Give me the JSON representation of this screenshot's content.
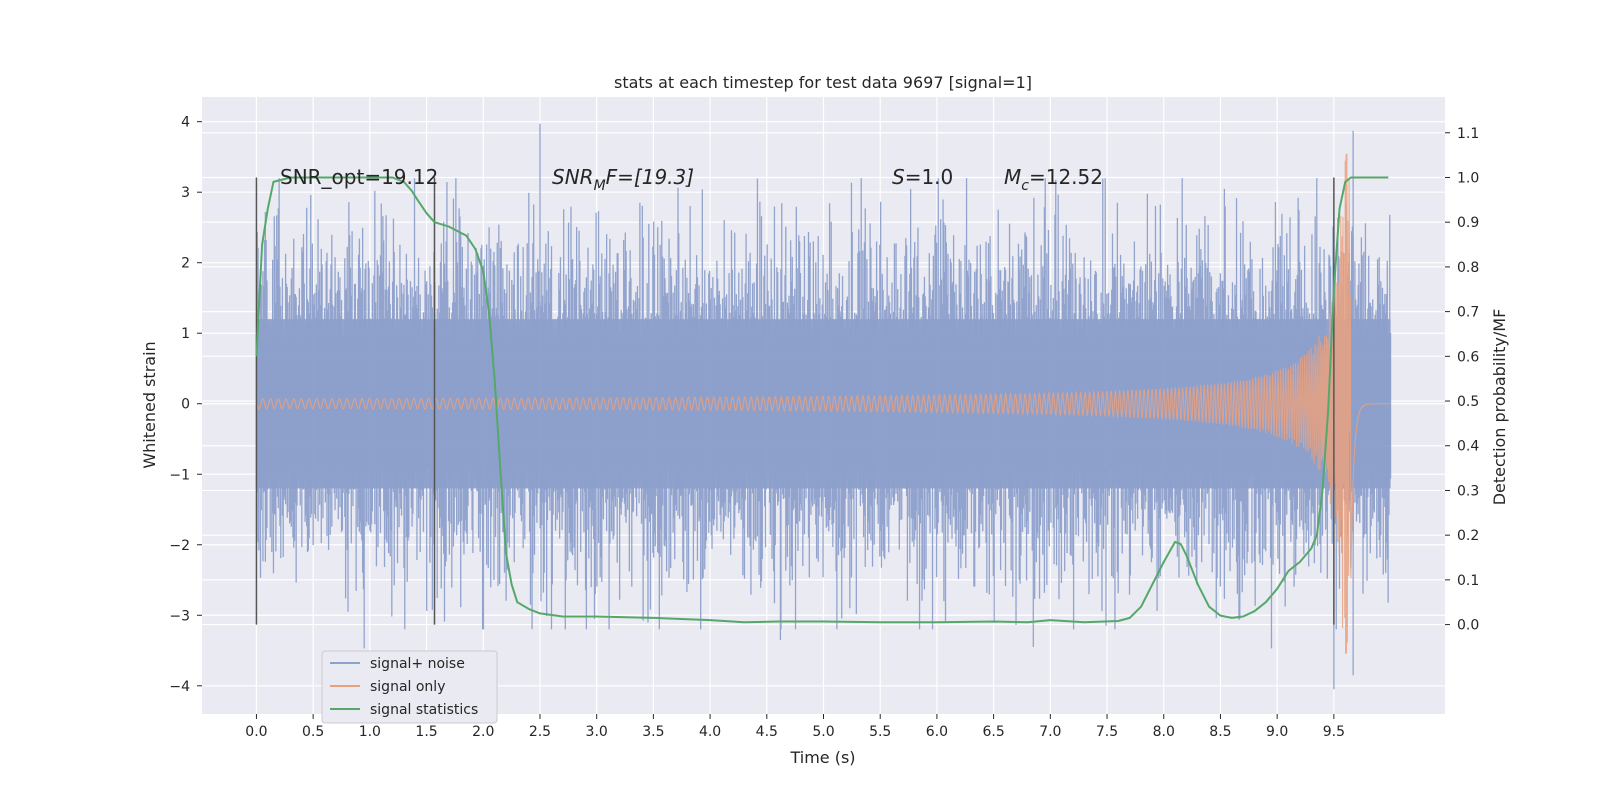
{
  "chart_data": {
    "type": "line",
    "title": "stats at each timestep for test data 9697 [signal=1]",
    "xlabel": "Time (s)",
    "ylabel_left": "Whitened strain",
    "ylabel_right": "Detection probability/MF",
    "xlim": [
      -0.48,
      10.48
    ],
    "ylim_left": [
      -4.4,
      4.35
    ],
    "ylim_right": [
      -0.2,
      1.18
    ],
    "x_ticks": [
      0.0,
      0.5,
      1.0,
      1.5,
      2.0,
      2.5,
      3.0,
      3.5,
      4.0,
      4.5,
      5.0,
      5.5,
      6.0,
      6.5,
      7.0,
      7.5,
      8.0,
      8.5,
      9.0,
      9.5
    ],
    "x_tick_labels": [
      "0.0",
      "0.5",
      "1.0",
      "1.5",
      "2.0",
      "2.5",
      "3.0",
      "3.5",
      "4.0",
      "4.5",
      "5.0",
      "5.5",
      "6.0",
      "6.5",
      "7.0",
      "7.5",
      "8.0",
      "8.5",
      "9.0",
      "9.5"
    ],
    "y_left_ticks": [
      4,
      3,
      2,
      1,
      0,
      -1,
      -2,
      -3,
      -4
    ],
    "y_left_tick_labels": [
      "4",
      "3",
      "2",
      "1",
      "0",
      "−1",
      "−2",
      "−3",
      "−4"
    ],
    "y_right_ticks": [
      1.1,
      1.0,
      0.9,
      0.8,
      0.7,
      0.6,
      0.5,
      0.4,
      0.3,
      0.2,
      0.1,
      0.0
    ],
    "y_right_tick_labels": [
      "1.1",
      "1.0",
      "0.9",
      "0.8",
      "0.7",
      "0.6",
      "0.5",
      "0.4",
      "0.3",
      "0.2",
      "0.1",
      "0.0"
    ],
    "grid": true,
    "legend_position": "lower-left",
    "annotations": {
      "snr_opt": "SNR_opt=19.12",
      "snr_mf": "F=[19.3]",
      "snr_mf_symbol": "SNR",
      "snr_mf_sub": "M",
      "s_symbol": "S",
      "s_value": "=1.0",
      "mc_symbol": "M",
      "mc_sub": "c",
      "mc_value": "=12.52"
    },
    "vertical_markers_x": [
      0.0,
      1.57,
      9.5
    ],
    "series": [
      {
        "name": "signal+ noise",
        "axis": "left",
        "color": "#8da0cb",
        "x_range": [
          0.0,
          10.0
        ],
        "envelope_typical": 1.8,
        "peak_values": [
          {
            "x": 2.5,
            "y": 3.97
          },
          {
            "x": 9.67,
            "y": 3.87
          },
          {
            "x": 9.67,
            "y": -3.85
          },
          {
            "x": 9.5,
            "y": -4.05
          },
          {
            "x": 0.95,
            "y": -3.47
          },
          {
            "x": 4.62,
            "y": -3.35
          },
          {
            "x": 6.85,
            "y": -3.45
          },
          {
            "x": 8.95,
            "y": -3.47
          }
        ]
      },
      {
        "name": "signal only",
        "axis": "left",
        "color": "#e9a17f",
        "x_range": [
          0.0,
          10.0
        ],
        "merger_x": 9.65,
        "amplitude_start": 0.03,
        "amplitude_peak": 3.55
      },
      {
        "name": "signal statistics",
        "axis": "right",
        "color": "#55a868",
        "x": [
          0.0,
          0.05,
          0.1,
          0.15,
          0.3,
          0.6,
          1.0,
          1.2,
          1.3,
          1.37,
          1.42,
          1.5,
          1.57,
          1.7,
          1.85,
          1.93,
          2.0,
          2.05,
          2.1,
          2.15,
          2.2,
          2.25,
          2.3,
          2.4,
          2.5,
          2.7,
          3.0,
          3.5,
          4.0,
          4.3,
          4.6,
          5.0,
          5.5,
          6.0,
          6.5,
          6.8,
          7.0,
          7.3,
          7.6,
          7.7,
          7.8,
          7.9,
          8.0,
          8.1,
          8.15,
          8.2,
          8.3,
          8.4,
          8.5,
          8.6,
          8.7,
          8.8,
          8.9,
          9.0,
          9.1,
          9.2,
          9.3,
          9.35,
          9.4,
          9.45,
          9.5,
          9.55,
          9.6,
          9.65,
          9.7,
          9.8,
          9.9,
          9.98
        ],
        "values": [
          0.6,
          0.85,
          0.93,
          0.99,
          1.0,
          1.0,
          1.0,
          1.0,
          0.99,
          0.97,
          0.95,
          0.92,
          0.9,
          0.89,
          0.87,
          0.84,
          0.79,
          0.7,
          0.55,
          0.35,
          0.16,
          0.09,
          0.05,
          0.035,
          0.025,
          0.018,
          0.018,
          0.015,
          0.01,
          0.005,
          0.007,
          0.007,
          0.005,
          0.005,
          0.007,
          0.005,
          0.01,
          0.005,
          0.008,
          0.015,
          0.04,
          0.09,
          0.14,
          0.185,
          0.18,
          0.155,
          0.09,
          0.04,
          0.02,
          0.015,
          0.018,
          0.03,
          0.05,
          0.08,
          0.12,
          0.14,
          0.17,
          0.2,
          0.3,
          0.48,
          0.75,
          0.93,
          0.99,
          1.0,
          1.0,
          1.0,
          1.0,
          1.0
        ]
      }
    ]
  }
}
